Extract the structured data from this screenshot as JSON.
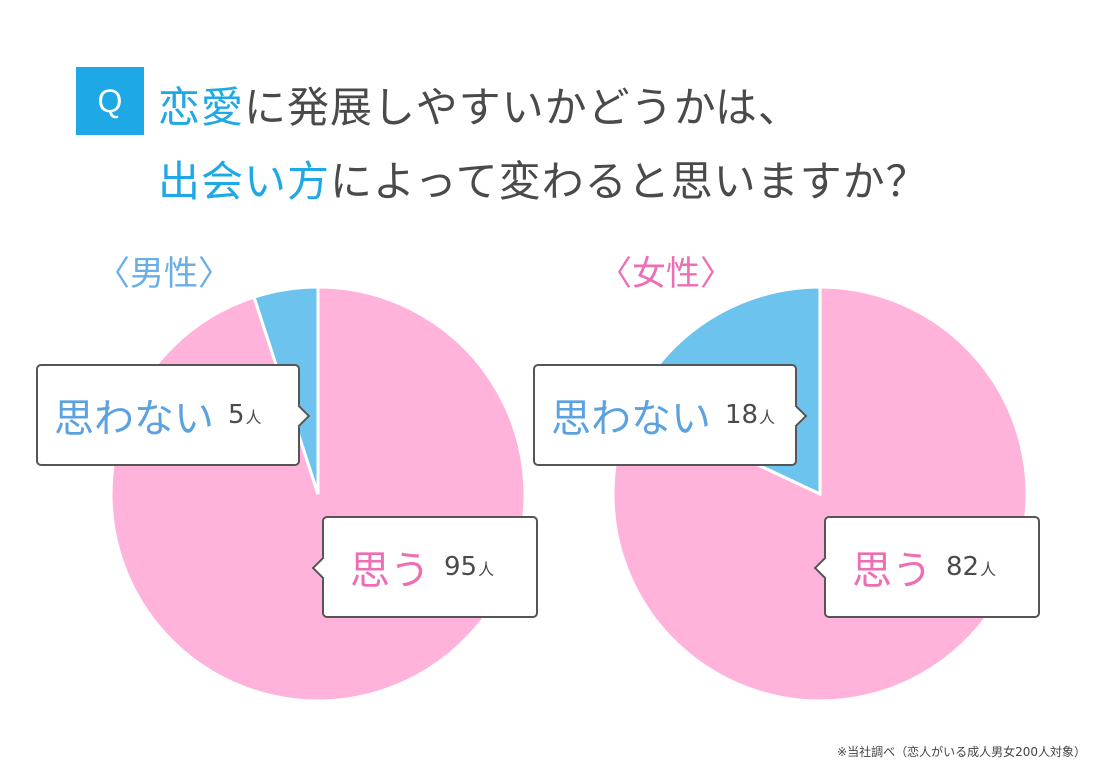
{
  "question": {
    "badge": "Q",
    "line1_highlight": "恋愛",
    "line1_rest": "に発展しやすいかどうかは、",
    "line2_highlight": "出会い方",
    "line2_rest": "によって変わると思いますか？"
  },
  "colors": {
    "accent": "#1ea8e6",
    "pink": "#ffb3da",
    "blue": "#6cc4ee",
    "male_label": "#6aaee8",
    "female_label": "#ee6eb4"
  },
  "chart_data": [
    {
      "type": "pie",
      "title": "〈男性〉",
      "series": [
        {
          "name": "思う",
          "value": 95,
          "unit": "人",
          "color": "#ffb3da"
        },
        {
          "name": "思わない",
          "value": 5,
          "unit": "人",
          "color": "#6cc4ee"
        }
      ]
    },
    {
      "type": "pie",
      "title": "〈女性〉",
      "series": [
        {
          "name": "思う",
          "value": 82,
          "unit": "人",
          "color": "#ffb3da"
        },
        {
          "name": "思わない",
          "value": 18,
          "unit": "人",
          "color": "#6cc4ee"
        }
      ]
    }
  ],
  "footnote": "※当社調べ（恋人がいる成人男女200人対象）"
}
